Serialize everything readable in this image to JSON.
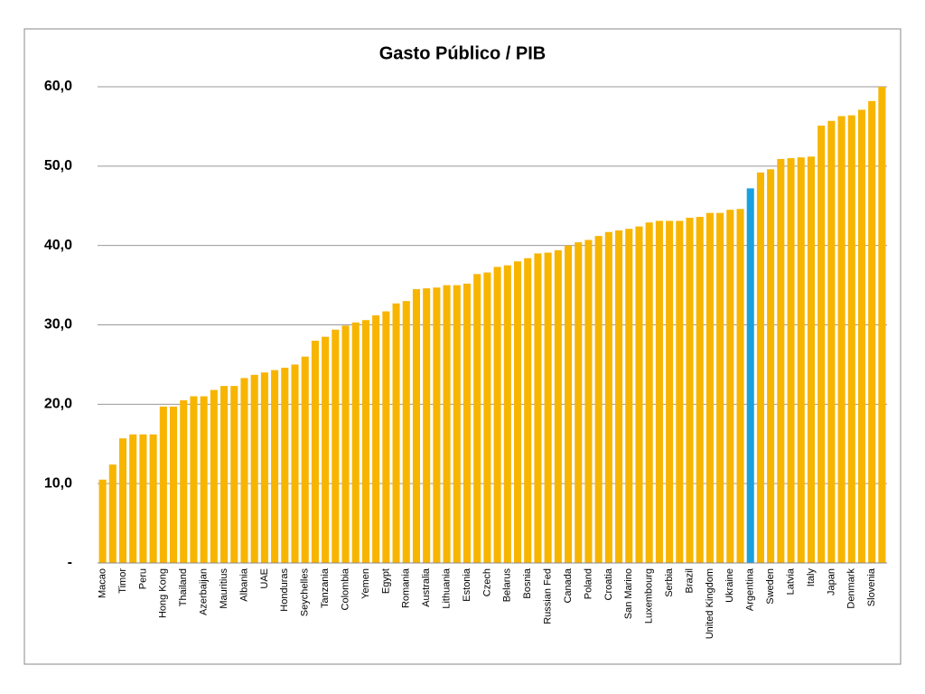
{
  "chart_data": {
    "type": "bar",
    "title": "Gasto Público / PIB",
    "categories": [
      "Macao",
      null,
      "Timor",
      null,
      "Peru",
      null,
      "Hong Kong",
      null,
      "Thailand",
      null,
      "Azerbaijan",
      null,
      "Mauritius",
      null,
      "Albania",
      null,
      "UAE",
      null,
      "Honduras",
      null,
      "Seychelles",
      null,
      "Tanzania",
      null,
      "Colombia",
      null,
      "Yemen",
      null,
      "Egypt",
      null,
      "Romania",
      null,
      "Australia",
      null,
      "Lithuania",
      null,
      "Estonia",
      null,
      "Czech",
      null,
      "Belarus",
      null,
      "Bosnia",
      null,
      "Russian Fed",
      null,
      "Canada",
      null,
      "Poland",
      null,
      "Croatia",
      null,
      "San Marino",
      null,
      "Luxembourg",
      null,
      "Serbia",
      null,
      "Brazil",
      null,
      "United Kingdom",
      null,
      "Ukraine",
      null,
      "Argentina",
      null,
      "Sweden",
      null,
      "Latvia",
      null,
      "Italy",
      null,
      "Japan",
      null,
      "Denmark",
      null,
      "Slovenia",
      null
    ],
    "values": [
      10.5,
      12.4,
      15.7,
      16.2,
      16.2,
      16.2,
      19.7,
      19.7,
      20.5,
      21.0,
      21.0,
      21.8,
      22.3,
      22.3,
      23.3,
      23.7,
      24.0,
      24.3,
      24.6,
      25.0,
      26.0,
      28.0,
      28.5,
      29.4,
      29.9,
      30.3,
      30.6,
      31.2,
      31.7,
      32.7,
      33.0,
      34.5,
      34.6,
      34.7,
      35.0,
      35.0,
      35.2,
      36.4,
      36.6,
      37.3,
      37.5,
      38.0,
      38.4,
      39.0,
      39.1,
      39.4,
      40.0,
      40.4,
      40.7,
      41.2,
      41.7,
      41.9,
      42.1,
      42.4,
      42.9,
      43.1,
      43.1,
      43.1,
      43.5,
      43.6,
      44.1,
      44.1,
      44.5,
      44.6,
      47.2,
      49.2,
      49.6,
      50.9,
      51.0,
      51.1,
      51.2,
      55.1,
      55.7,
      56.3,
      56.4,
      57.1,
      58.2,
      60.0
    ],
    "color": "#f7b500",
    "highlight": {
      "index": 64,
      "color": "#19a0e0"
    },
    "ylim": [
      0,
      60
    ],
    "yticks": [
      {
        "value": 0,
        "label": "-"
      },
      {
        "value": 10,
        "label": "10,0"
      },
      {
        "value": 20,
        "label": "20,0"
      },
      {
        "value": 30,
        "label": "30,0"
      },
      {
        "value": 40,
        "label": "40,0"
      },
      {
        "value": 50,
        "label": "50,0"
      },
      {
        "value": 60,
        "label": "60,0"
      }
    ],
    "grid": true
  }
}
